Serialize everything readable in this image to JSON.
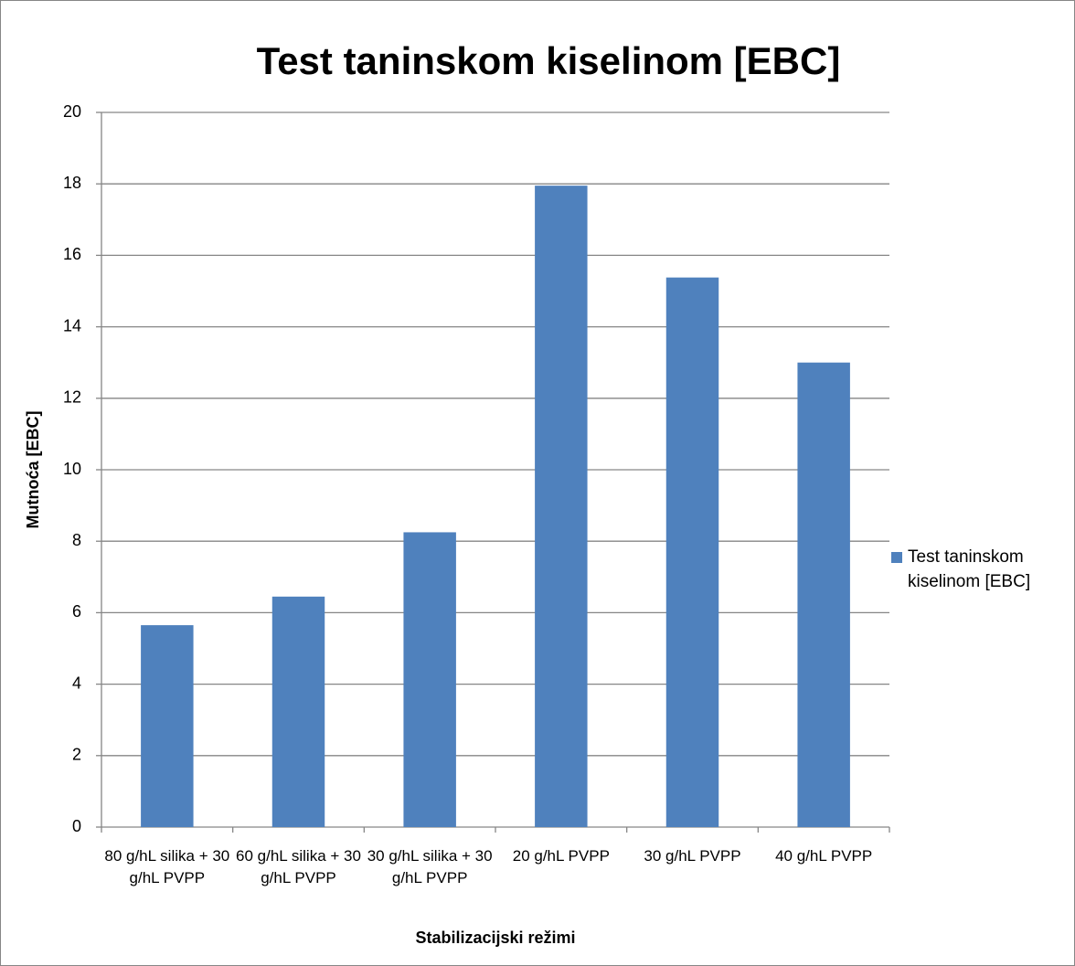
{
  "chart_data": {
    "type": "bar",
    "title": "Test taninskom kiselinom [EBC]",
    "x_label": "Stabilizacijski režimi",
    "y_label": "Mutnoća [EBC]",
    "categories": [
      "80 g/hL silika + 30 g/hL PVPP",
      "60 g/hL silika + 30 g/hL PVPP",
      "30 g/hL silika + 30 g/hL PVPP",
      "20 g/hL PVPP",
      "30 g/hL PVPP",
      "40 g/hL PVPP"
    ],
    "series": [
      {
        "name": "Test taninskom kiselinom [EBC]",
        "color": "#4f81bd",
        "values": [
          5.65,
          6.45,
          8.25,
          17.95,
          15.38,
          13.0
        ]
      }
    ],
    "ylim": [
      0,
      20
    ],
    "yticks": [
      0,
      2,
      4,
      6,
      8,
      10,
      12,
      14,
      16,
      18,
      20
    ],
    "grid": true,
    "legend": "right"
  }
}
